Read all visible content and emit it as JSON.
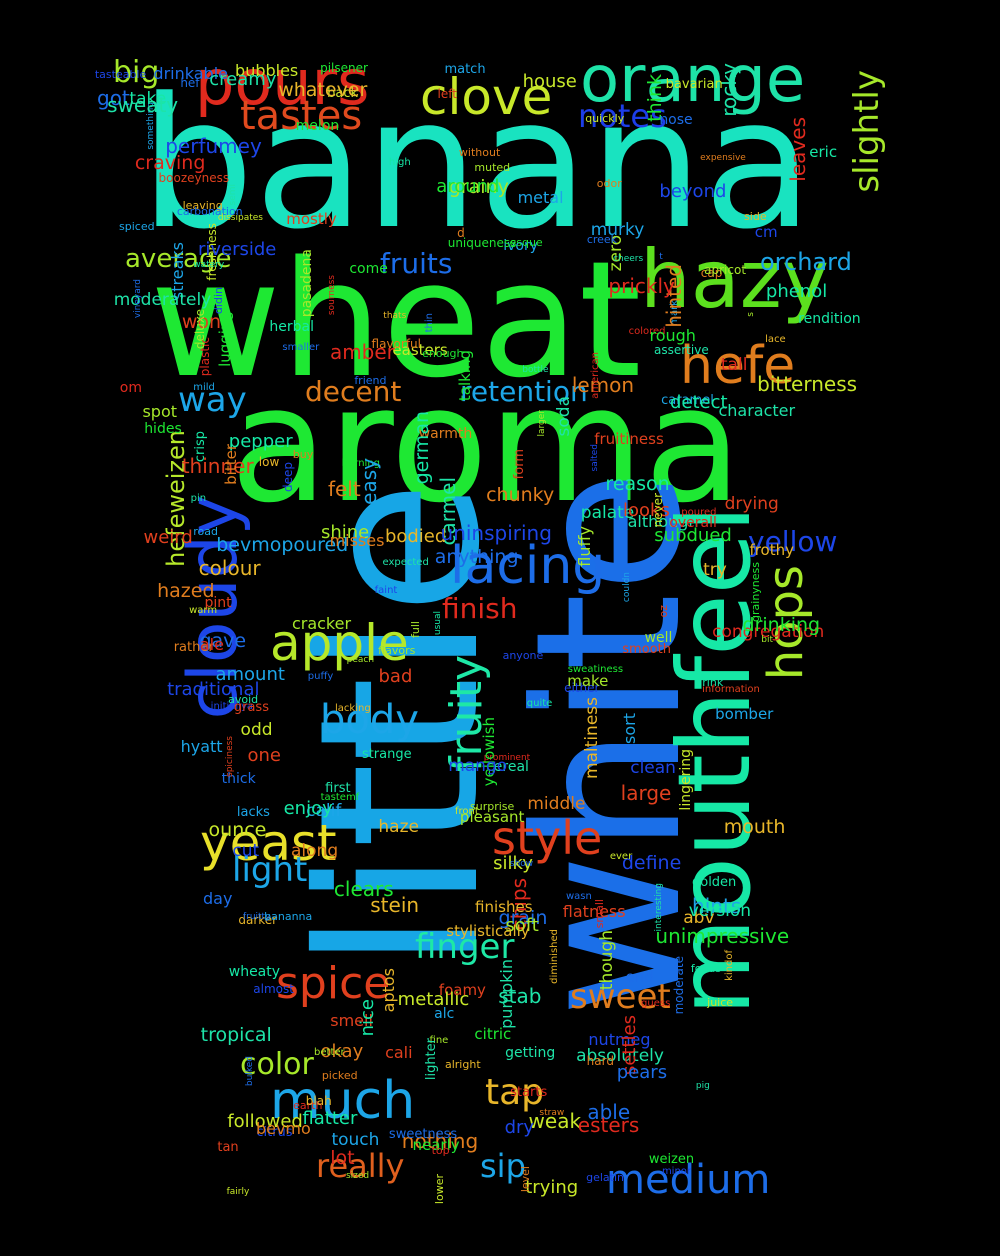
{
  "word_cloud": {
    "colors": {
      "background": "#000000",
      "banana": "#19e3c0",
      "wheat": "#1ee833",
      "aroma": "#1ee833",
      "little": "#17a6e6",
      "white": "#1b6fe8",
      "mouthfeel": "#16e8a6",
      "orange": "#1ee3a8",
      "pours": "#e02a1e",
      "clove": "#c8e82a",
      "hazy": "#5ce01e",
      "hefe": "#e07d1e",
      "cloudy": "#1d46e8"
    },
    "words": [
      {
        "text": "banana",
        "color": "#19e3c0"
      },
      {
        "text": "wheat",
        "color": "#1ee833"
      },
      {
        "text": "aroma",
        "color": "#1ee833"
      },
      {
        "text": "little",
        "color": "#17a6e6"
      },
      {
        "text": "white",
        "color": "#1b6fe8"
      },
      {
        "text": "mouthfeel",
        "color": "#16e8a6"
      },
      {
        "text": "pours",
        "color": "#e02a1e"
      },
      {
        "text": "orange",
        "color": "#1ee3a8"
      },
      {
        "text": "clove",
        "color": "#c8e82a"
      },
      {
        "text": "tastes",
        "color": "#e04a1e"
      },
      {
        "text": "big",
        "color": "#a6e82a"
      },
      {
        "text": "got",
        "color": "#1d6de8"
      },
      {
        "text": "notes",
        "color": "#1d3ee8"
      },
      {
        "text": "hazy",
        "color": "#5ce01e"
      },
      {
        "text": "hefe",
        "color": "#e07d1e"
      },
      {
        "text": "slightly",
        "color": "#a6e82a"
      },
      {
        "text": "cloudy",
        "color": "#1d46e8"
      },
      {
        "text": "lacing",
        "color": "#1d6de8"
      },
      {
        "text": "apple",
        "color": "#b6e82a"
      },
      {
        "text": "yeast",
        "color": "#e8e02a"
      },
      {
        "text": "body",
        "color": "#1da6e8"
      },
      {
        "text": "hops",
        "color": "#a6e82a"
      },
      {
        "text": "style",
        "color": "#e0401e"
      },
      {
        "text": "much",
        "color": "#1da6e8"
      },
      {
        "text": "spice",
        "color": "#e0401e"
      },
      {
        "text": "medium",
        "color": "#1d6de8"
      },
      {
        "text": "really",
        "color": "#e0601e"
      },
      {
        "text": "fruity",
        "color": "#1ee8a6"
      },
      {
        "text": "finish",
        "color": "#e02a1e"
      },
      {
        "text": "retention",
        "color": "#1da6e8"
      },
      {
        "text": "decent",
        "color": "#e07d1e"
      },
      {
        "text": "way",
        "color": "#1da6e8"
      },
      {
        "text": "fruits",
        "color": "#1d6de8"
      },
      {
        "text": "average",
        "color": "#a6e82a"
      },
      {
        "text": "orchard",
        "color": "#1da6e8"
      },
      {
        "text": "light",
        "color": "#1da6e8"
      },
      {
        "text": "finger",
        "color": "#1ee8a6"
      },
      {
        "text": "sweet",
        "color": "#e07d1e"
      },
      {
        "text": "tap",
        "color": "#e8b62a"
      },
      {
        "text": "sip",
        "color": "#1da6e8"
      },
      {
        "text": "color",
        "color": "#a6e82a"
      },
      {
        "text": "hefeweizen",
        "color": "#b6e82a"
      },
      {
        "text": "yellow",
        "color": "#1d46e8"
      },
      {
        "text": "banana",
        "color": "#19e3c0"
      }
    ],
    "small_words": [
      "avoid",
      "gave",
      "shine",
      "without",
      "ivory",
      "leaves",
      "grainyness",
      "either",
      "lower",
      "pepper",
      "thinner",
      "alright",
      "although",
      "thin",
      "fluffy",
      "warmth",
      "alc",
      "colored",
      "unimpressive",
      "nutmeg",
      "back",
      "palate",
      "tan",
      "colour",
      "getting",
      "moderate",
      "zero",
      "okay",
      "something",
      "guess",
      "melon",
      "deep",
      "dissipates",
      "high",
      "weird",
      "stein",
      "first",
      "bulked",
      "spot",
      "chunky",
      "bevmopoured",
      "congregation",
      "weizen",
      "define",
      "trying",
      "eric",
      "looks",
      "try",
      "carmel",
      "creek",
      "peach",
      "rather",
      "calif",
      "starts",
      "come",
      "initiallya",
      "easters",
      "take",
      "information",
      "thats",
      "interesting",
      "friend",
      "cracker",
      "nothing",
      "road",
      "chips",
      "burning",
      "clean",
      "odd",
      "strange",
      "grass",
      "finishes",
      "pin",
      "able",
      "fine",
      "buy",
      "easy",
      "prominent",
      "uniqueness",
      "anyone",
      "front",
      "usual",
      "boozeyness",
      "mouth",
      "rocky",
      "grain",
      "larger",
      "felt",
      "murky",
      "plastic",
      "talking",
      "citrus",
      "freshness",
      "crisp",
      "foamy",
      "haze",
      "assertive",
      "anything",
      "full",
      "along",
      "couldn",
      "om",
      "hides",
      "traditional",
      "ever",
      "foods",
      "drying",
      "bodied",
      "pumpkin",
      "thick",
      "muted",
      "level",
      "touch",
      "poured",
      "think",
      "tasteable",
      "fairly",
      "quite",
      "pint",
      "maltiness",
      "character",
      "hef",
      "soft",
      "picked",
      "caramel",
      "amber",
      "pilsener",
      "gelatin",
      "silky",
      "detect",
      "flatness",
      "kindof",
      "expected",
      "smaller",
      "pasadena",
      "odor",
      "streaks",
      "ale",
      "nearly",
      "cm",
      "warm",
      "enjoy",
      "cali",
      "abv",
      "absolutely",
      "drinkable",
      "sized",
      "lemon",
      "mark",
      "settles",
      "sweatiness",
      "riverside",
      "bubbles",
      "german",
      "smooth",
      "leaving",
      "bottle",
      "sweetness",
      "better",
      "expensive",
      "metal",
      "earth",
      "subdued",
      "cut",
      "weak",
      "flatter",
      "form",
      "lacking",
      "soda",
      "wasn",
      "well",
      "cap",
      "amount",
      "overall",
      "enough",
      "uninspiring",
      "followed",
      "watery",
      "left",
      "darker",
      "cereal",
      "nose",
      "make",
      "flavorful",
      "spiced",
      "top",
      "clears",
      "minor",
      "ounce",
      "golden",
      "won",
      "low",
      "pig",
      "puffy",
      "surprise",
      "bevmo",
      "hyatt",
      "american",
      "drinking",
      "perfumey",
      "metallic",
      "herbal",
      "one",
      "whatever",
      "stab",
      "pears",
      "bit",
      "straw",
      "sort",
      "lot",
      "lugging",
      "salted",
      "quickly",
      "reason",
      "smell",
      "frothy",
      "sweaty",
      "fruitty",
      "though",
      "hard",
      "hints",
      "small",
      "yellowish",
      "faint",
      "house",
      "wheaty",
      "spiciness",
      "lace",
      "moderately",
      "end",
      "grainy",
      "hazed",
      "bananna",
      "tall",
      "rough",
      "beyond",
      "never",
      "phenol",
      "bad",
      "side",
      "creamy",
      "show",
      "apricot",
      "bitter",
      "mild",
      "sourness",
      "citric",
      "dry",
      "juice",
      "rendition",
      "fruitiness",
      "stylistically",
      "semi",
      "carbonation",
      "pleasant",
      "hinted",
      "match",
      "prickly",
      "around",
      "mango",
      "bavarian",
      "drink",
      "large",
      "aptos",
      "cheers",
      "day",
      "deluxe",
      "middle",
      "bomber",
      "esters",
      "tastemf",
      "almost",
      "lingering",
      "nice",
      "mostly",
      "blah",
      "lighter",
      "vineyard",
      "flavors",
      "misses",
      "lacks",
      "craving",
      "esque",
      "didin",
      "bitterness",
      "version",
      "oz",
      "diminished",
      "tropical",
      "t",
      "s",
      "d"
    ]
  }
}
